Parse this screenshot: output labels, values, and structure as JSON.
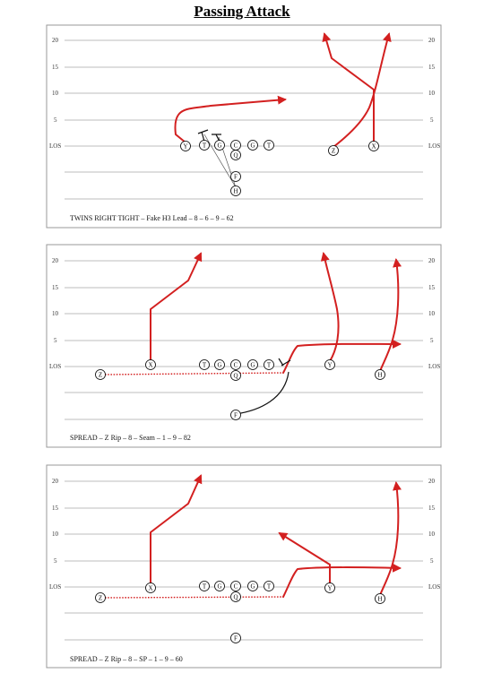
{
  "title": "Passing Attack",
  "colors": {
    "route": "#d32020",
    "block": "#111111",
    "yard_line": "#bdbdbd"
  },
  "diagrams": [
    {
      "caption": "TWINS RIGHT TIGHT – Fake H3 Lead – 8 – 6 – 9 – 62",
      "yard_labels": [
        "20",
        "15",
        "10",
        "5",
        "LOS"
      ],
      "players": [
        {
          "label": "Y"
        },
        {
          "label": "T"
        },
        {
          "label": "G"
        },
        {
          "label": "C"
        },
        {
          "label": "G"
        },
        {
          "label": "T"
        },
        {
          "label": "Q"
        },
        {
          "label": "Z"
        },
        {
          "label": "X"
        },
        {
          "label": "F"
        },
        {
          "label": "H"
        }
      ]
    },
    {
      "caption": "SPREAD – Z Rip – 8 – Seam – 1 – 9 – 82",
      "yard_labels": [
        "20",
        "15",
        "10",
        "5",
        "LOS"
      ],
      "players": [
        {
          "label": "Z"
        },
        {
          "label": "X"
        },
        {
          "label": "T"
        },
        {
          "label": "G"
        },
        {
          "label": "C"
        },
        {
          "label": "G"
        },
        {
          "label": "T"
        },
        {
          "label": "Q"
        },
        {
          "label": "Y"
        },
        {
          "label": "H"
        },
        {
          "label": "F"
        }
      ]
    },
    {
      "caption": "SPREAD – Z Rip – 8 – SP – 1 – 9 – 60",
      "yard_labels": [
        "20",
        "15",
        "10",
        "5",
        "LOS"
      ],
      "players": [
        {
          "label": "Z"
        },
        {
          "label": "X"
        },
        {
          "label": "T"
        },
        {
          "label": "G"
        },
        {
          "label": "C"
        },
        {
          "label": "G"
        },
        {
          "label": "T"
        },
        {
          "label": "Q"
        },
        {
          "label": "Y"
        },
        {
          "label": "H"
        },
        {
          "label": "F"
        }
      ]
    }
  ]
}
